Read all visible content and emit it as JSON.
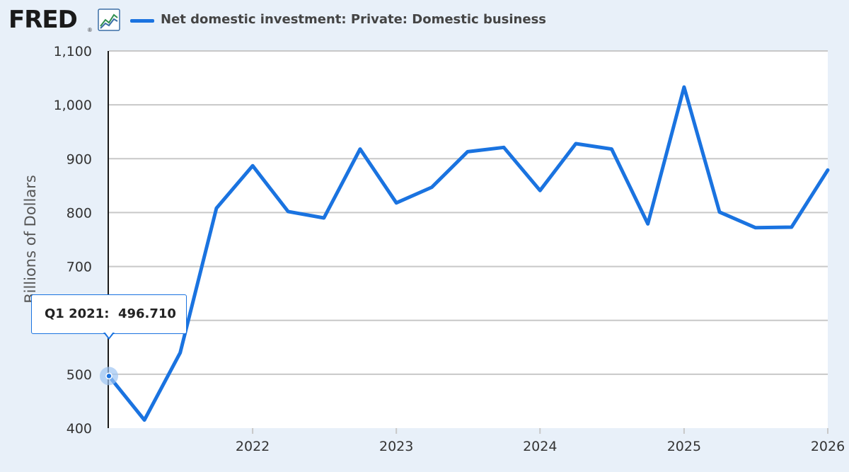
{
  "brand": {
    "logo_text": "FRED",
    "registered_mark": "®",
    "logo_icon": "line-chart-icon"
  },
  "colors": {
    "background": "#e8f0f9",
    "plot_background": "#ffffff",
    "series_line": "#1a73e0",
    "gridline": "#c8c8c8"
  },
  "chart_data": {
    "type": "line",
    "title": "",
    "xlabel": "",
    "ylabel": "Billions of Dollars",
    "ylim": [
      400,
      1100
    ],
    "yticks": [
      400,
      500,
      600,
      700,
      800,
      900,
      1000,
      1100
    ],
    "ytick_labels": [
      "400",
      "500",
      "600",
      "700",
      "800",
      "900",
      "1,000",
      "1,100"
    ],
    "xlim": [
      "2021-01-01",
      "2026-01-01"
    ],
    "xticks": [
      "2022",
      "2023",
      "2024",
      "2025",
      "2026"
    ],
    "grid": true,
    "legend_position": "top-left",
    "series": [
      {
        "name": "Net domestic investment: Private: Domestic business",
        "x": [
          "2021-01-01",
          "2021-04-01",
          "2021-07-01",
          "2021-10-01",
          "2022-01-01",
          "2022-04-01",
          "2022-07-01",
          "2022-10-01",
          "2023-01-01",
          "2023-04-01",
          "2023-07-01",
          "2023-10-01",
          "2024-01-01",
          "2024-04-01",
          "2024-07-01",
          "2024-10-01",
          "2025-01-01",
          "2025-04-01",
          "2025-07-01",
          "2025-10-01",
          "2026-01-01"
        ],
        "values": [
          496.71,
          415,
          540,
          808,
          887,
          802,
          790,
          918,
          818,
          847,
          913,
          921,
          841,
          928,
          918,
          779,
          1033,
          801,
          772,
          773,
          879
        ]
      }
    ],
    "tooltip": {
      "label": "Q1 2021:",
      "value": "496.710",
      "point_index": 0
    }
  }
}
